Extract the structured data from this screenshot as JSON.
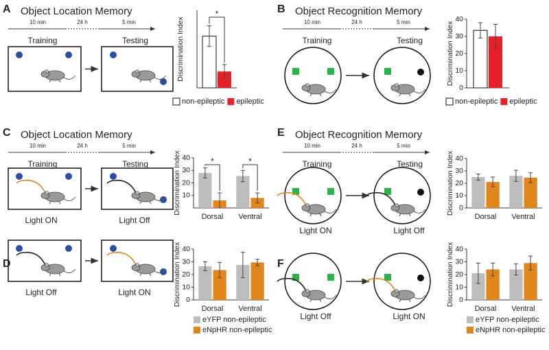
{
  "panels": [
    {
      "letter": "A",
      "title": "Object Location Memory",
      "timeline": [
        "10 min",
        "24 h",
        "5 min"
      ],
      "phases": [
        "Training",
        "Testing"
      ]
    },
    {
      "letter": "B",
      "title": "Object Recognition Memory",
      "timeline": [
        "10 min",
        "24 h",
        "5 min"
      ],
      "phases": [
        "Training",
        "Testing"
      ]
    },
    {
      "letter": "C",
      "title": "Object Location Memory",
      "timeline": [
        "10 min",
        "24 h",
        "5 min"
      ],
      "phases": [
        "Training",
        "Testing"
      ],
      "light": [
        "Light ON",
        "Light Off"
      ]
    },
    {
      "letter": "D",
      "light": [
        "Light Off",
        "Light ON"
      ]
    },
    {
      "letter": "E",
      "title": "Object Recognition Memory",
      "timeline": [
        "10 min",
        "24 h",
        "5 min"
      ],
      "phases": [
        "Training",
        "Testing"
      ],
      "light": [
        "Light ON",
        "Light Off"
      ]
    },
    {
      "letter": "F",
      "light": [
        "Light Off",
        "Light ON"
      ]
    }
  ],
  "chart_data": [
    {
      "type": "bar",
      "ylabel": "Discrimination Index",
      "categories": [
        null
      ],
      "ylim": [
        0,
        45
      ],
      "legend": "bottom",
      "annotations": [
        "*"
      ],
      "series": [
        {
          "name": "non-epileptic",
          "color": "#ffffff",
          "values": [
            30
          ],
          "errors": [
            6
          ]
        },
        {
          "name": "epileptic",
          "color": "#e8202a",
          "values": [
            9.5
          ],
          "errors": [
            4
          ]
        }
      ]
    },
    {
      "type": "bar",
      "ylabel": "Discrimination Index",
      "categories": [
        null
      ],
      "ylim": [
        0,
        40
      ],
      "yticks": [
        0,
        10,
        20,
        30,
        40
      ],
      "legend": "bottom",
      "series": [
        {
          "name": "non-epileptic",
          "color": "#ffffff",
          "values": [
            33.5
          ],
          "errors": [
            4.5
          ]
        },
        {
          "name": "epileptic",
          "color": "#e8202a",
          "values": [
            30
          ],
          "errors": [
            7
          ]
        }
      ]
    },
    {
      "type": "bar",
      "ylabel": "Discrimination Index",
      "categories": [
        "Dorsal",
        "Ventral"
      ],
      "ylim": [
        0,
        40
      ],
      "yticks": [
        10,
        20,
        30,
        40
      ],
      "annotations": [
        "*",
        "*"
      ],
      "series": [
        {
          "color": "#bdbdbd",
          "values": [
            28,
            25.5
          ],
          "errors": [
            4,
            4.5
          ]
        },
        {
          "color": "#e0861a",
          "values": [
            6,
            8
          ],
          "errors": [
            6,
            4
          ]
        }
      ]
    },
    {
      "type": "bar",
      "ylabel": "Discrimination Index",
      "categories": [
        "Dorsal",
        "Ventral"
      ],
      "ylim": [
        0,
        40
      ],
      "yticks": [
        0,
        10,
        20,
        30,
        40
      ],
      "legend": "bottom",
      "series": [
        {
          "name": "eYFP non-epileptic",
          "color": "#bdbdbd",
          "values": [
            26.5,
            27.5
          ],
          "errors": [
            3.5,
            10
          ]
        },
        {
          "name": "eNpHR non-epileptic",
          "color": "#e0861a",
          "values": [
            23.5,
            29.5
          ],
          "errors": [
            6,
            2.5
          ]
        }
      ]
    },
    {
      "type": "bar",
      "ylabel": "Discrimination Index",
      "categories": [
        "Dorsal",
        "Ventral"
      ],
      "ylim": [
        0,
        40
      ],
      "yticks": [
        0,
        10,
        20,
        30,
        40
      ],
      "series": [
        {
          "color": "#bdbdbd",
          "values": [
            25,
            26
          ],
          "errors": [
            2.5,
            4.5
          ]
        },
        {
          "color": "#e0861a",
          "values": [
            21,
            24.5
          ],
          "errors": [
            4,
            4
          ]
        }
      ]
    },
    {
      "type": "bar",
      "ylabel": "Discrimination Index",
      "categories": [
        "Dorsal",
        "Ventral"
      ],
      "ylim": [
        0,
        40
      ],
      "yticks": [
        0,
        10,
        20,
        30,
        40
      ],
      "legend": "bottom",
      "series": [
        {
          "name": "eYFP non-epileptic",
          "color": "#bdbdbd",
          "values": [
            21,
            24
          ],
          "errors": [
            8,
            4.5
          ]
        },
        {
          "name": "eNpHR non-epileptic",
          "color": "#e0861a",
          "values": [
            24,
            29
          ],
          "errors": [
            5,
            5.5
          ]
        }
      ]
    }
  ]
}
